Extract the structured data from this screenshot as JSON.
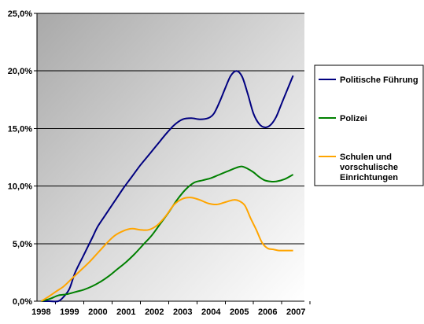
{
  "chart_data": {
    "type": "line",
    "ylim": [
      0,
      25
    ],
    "y_ticks": [
      "0,0%",
      "5,0%",
      "10,0%",
      "15,0%",
      "20,0%",
      "25,0%"
    ],
    "y_tick_values": [
      0,
      5,
      10,
      15,
      20,
      25
    ],
    "xlim": [
      1997.85,
      2007.3
    ],
    "x_ticks": [
      "1998",
      "1999",
      "2000",
      "2001",
      "2002",
      "2003",
      "2004",
      "2005",
      "2006",
      "2007"
    ],
    "x_tick_values": [
      1998,
      1999,
      2000,
      2001,
      2002,
      2003,
      2004,
      2005,
      2006,
      2007
    ],
    "grid": true,
    "legend_position": "right",
    "background": "gradient grey",
    "series": [
      {
        "name": "Politische Führung",
        "color": "#000080",
        "points": [
          [
            1998.0,
            0
          ],
          [
            1998.3,
            0
          ],
          [
            1998.6,
            0
          ],
          [
            1998.8,
            0.4
          ],
          [
            1999.0,
            1.1
          ],
          [
            1999.2,
            2.5
          ],
          [
            1999.5,
            4.0
          ],
          [
            1999.8,
            5.5
          ],
          [
            2000.0,
            6.5
          ],
          [
            2000.3,
            7.6
          ],
          [
            2000.6,
            8.7
          ],
          [
            2000.9,
            9.8
          ],
          [
            2001.2,
            10.8
          ],
          [
            2001.5,
            11.8
          ],
          [
            2001.8,
            12.7
          ],
          [
            2002.1,
            13.6
          ],
          [
            2002.4,
            14.5
          ],
          [
            2002.7,
            15.3
          ],
          [
            2003.0,
            15.8
          ],
          [
            2003.3,
            15.9
          ],
          [
            2003.6,
            15.8
          ],
          [
            2003.9,
            15.9
          ],
          [
            2004.1,
            16.3
          ],
          [
            2004.3,
            17.3
          ],
          [
            2004.5,
            18.5
          ],
          [
            2004.7,
            19.6
          ],
          [
            2004.9,
            20.0
          ],
          [
            2005.1,
            19.5
          ],
          [
            2005.3,
            18.0
          ],
          [
            2005.5,
            16.3
          ],
          [
            2005.7,
            15.4
          ],
          [
            2005.9,
            15.1
          ],
          [
            2006.1,
            15.3
          ],
          [
            2006.3,
            16.0
          ],
          [
            2006.5,
            17.2
          ],
          [
            2006.7,
            18.4
          ],
          [
            2006.9,
            19.6
          ]
        ]
      },
      {
        "name": "Polizei",
        "color": "#008000",
        "points": [
          [
            1998.0,
            0
          ],
          [
            1998.3,
            0.2
          ],
          [
            1998.6,
            0.5
          ],
          [
            1998.9,
            0.6
          ],
          [
            1999.2,
            0.8
          ],
          [
            1999.5,
            1.0
          ],
          [
            1999.8,
            1.3
          ],
          [
            2000.1,
            1.7
          ],
          [
            2000.4,
            2.2
          ],
          [
            2000.7,
            2.8
          ],
          [
            2001.0,
            3.4
          ],
          [
            2001.3,
            4.1
          ],
          [
            2001.6,
            4.9
          ],
          [
            2001.9,
            5.7
          ],
          [
            2002.2,
            6.7
          ],
          [
            2002.5,
            7.7
          ],
          [
            2002.8,
            8.8
          ],
          [
            2003.1,
            9.7
          ],
          [
            2003.4,
            10.3
          ],
          [
            2003.7,
            10.5
          ],
          [
            2004.0,
            10.7
          ],
          [
            2004.3,
            11.0
          ],
          [
            2004.6,
            11.3
          ],
          [
            2004.9,
            11.6
          ],
          [
            2005.1,
            11.7
          ],
          [
            2005.3,
            11.5
          ],
          [
            2005.5,
            11.2
          ],
          [
            2005.7,
            10.8
          ],
          [
            2005.9,
            10.5
          ],
          [
            2006.1,
            10.4
          ],
          [
            2006.3,
            10.4
          ],
          [
            2006.6,
            10.6
          ],
          [
            2006.9,
            11.0
          ]
        ]
      },
      {
        "name": "Schulen und vorschulische Einrichtungen",
        "color": "#FFA500",
        "points": [
          [
            1998.0,
            0
          ],
          [
            1998.2,
            0.3
          ],
          [
            1998.5,
            0.8
          ],
          [
            1998.8,
            1.3
          ],
          [
            1999.1,
            2.0
          ],
          [
            1999.4,
            2.7
          ],
          [
            1999.7,
            3.4
          ],
          [
            2000.0,
            4.2
          ],
          [
            2000.3,
            5.0
          ],
          [
            2000.6,
            5.7
          ],
          [
            2000.9,
            6.1
          ],
          [
            2001.2,
            6.3
          ],
          [
            2001.5,
            6.2
          ],
          [
            2001.8,
            6.2
          ],
          [
            2002.1,
            6.6
          ],
          [
            2002.4,
            7.4
          ],
          [
            2002.7,
            8.4
          ],
          [
            2003.0,
            8.9
          ],
          [
            2003.3,
            9.0
          ],
          [
            2003.6,
            8.8
          ],
          [
            2003.9,
            8.5
          ],
          [
            2004.2,
            8.4
          ],
          [
            2004.5,
            8.6
          ],
          [
            2004.8,
            8.8
          ],
          [
            2005.0,
            8.7
          ],
          [
            2005.2,
            8.3
          ],
          [
            2005.4,
            7.2
          ],
          [
            2005.6,
            6.2
          ],
          [
            2005.8,
            5.1
          ],
          [
            2006.0,
            4.6
          ],
          [
            2006.2,
            4.5
          ],
          [
            2006.4,
            4.4
          ],
          [
            2006.7,
            4.4
          ],
          [
            2006.9,
            4.4
          ]
        ]
      }
    ]
  }
}
